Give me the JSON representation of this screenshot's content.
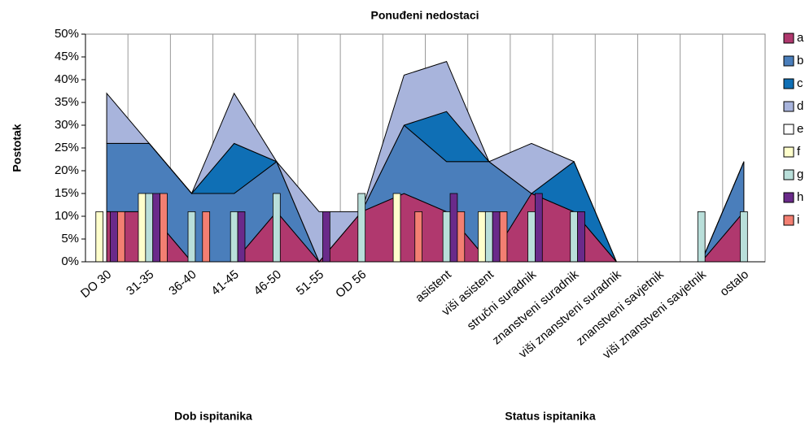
{
  "chart_data": {
    "type": "combo",
    "title": "Ponuđeni nedostaci",
    "y_label": "Postotak",
    "group_labels": [
      "Dob ispitanika",
      "Status ispitanika"
    ],
    "categories": [
      "DO 30",
      "31-35",
      "36-40",
      "41-45",
      "46-50",
      "51-55",
      "OD 56",
      null,
      "asistent",
      "viši asistent",
      "stručni suradnik",
      "znanstveni suradnik",
      "viši znanstveni suradnik",
      "znanstveni savjetnik",
      "viši znanstveni savjetnik",
      "ostalo"
    ],
    "series": [
      {
        "name": "a",
        "kind": "area",
        "color": "#B0386E",
        "values": [
          11,
          11,
          0,
          0,
          11,
          0,
          11,
          15,
          11,
          0,
          15,
          11,
          0,
          0,
          0,
          11
        ]
      },
      {
        "name": "b",
        "kind": "area",
        "color": "#4A7EBB",
        "values": [
          15,
          15,
          15,
          15,
          11,
          0,
          0,
          15,
          11,
          22,
          0,
          0,
          0,
          0,
          0,
          11
        ]
      },
      {
        "name": "c",
        "kind": "area",
        "color": "#0F6FB5",
        "values": [
          0,
          0,
          0,
          11,
          0,
          0,
          0,
          0,
          11,
          0,
          0,
          11,
          0,
          0,
          0,
          0
        ]
      },
      {
        "name": "d",
        "kind": "area",
        "color": "#A8B4DC",
        "values": [
          11,
          0,
          0,
          11,
          0,
          11,
          0,
          11,
          11,
          0,
          11,
          0,
          0,
          0,
          0,
          0
        ]
      },
      {
        "name": "e",
        "kind": "bar",
        "color": "#FFFFFF",
        "values": [
          0,
          0,
          0,
          0,
          0,
          0,
          0,
          0,
          0,
          0,
          0,
          0,
          0,
          0,
          0,
          0
        ]
      },
      {
        "name": "f",
        "kind": "bar",
        "color": "#FFFFCC",
        "values": [
          11,
          15,
          0,
          0,
          0,
          0,
          0,
          15,
          0,
          11,
          0,
          0,
          0,
          0,
          0,
          0
        ]
      },
      {
        "name": "g",
        "kind": "bar",
        "color": "#B9DFDA",
        "values": [
          0,
          15,
          11,
          11,
          15,
          0,
          15,
          0,
          11,
          11,
          11,
          11,
          0,
          0,
          11,
          11
        ]
      },
      {
        "name": "h",
        "kind": "bar",
        "color": "#6A2A8A",
        "values": [
          11,
          15,
          0,
          11,
          0,
          11,
          0,
          0,
          15,
          11,
          15,
          11,
          0,
          0,
          0,
          0
        ]
      },
      {
        "name": "i",
        "kind": "bar",
        "color": "#F37F72",
        "values": [
          11,
          15,
          11,
          0,
          0,
          0,
          0,
          11,
          11,
          11,
          0,
          0,
          0,
          0,
          0,
          0
        ]
      }
    ],
    "ylim": [
      0,
      50
    ],
    "yticks": [
      {
        "value": 0,
        "label": "0%"
      },
      {
        "value": 5,
        "label": "5%"
      },
      {
        "value": 10,
        "label": "10%"
      },
      {
        "value": 15,
        "label": "15%"
      },
      {
        "value": 20,
        "label": "20%"
      },
      {
        "value": 25,
        "label": "25%"
      },
      {
        "value": 30,
        "label": "30%"
      },
      {
        "value": 35,
        "label": "35%"
      },
      {
        "value": 40,
        "label": "40%"
      },
      {
        "value": 45,
        "label": "45%"
      },
      {
        "value": 50,
        "label": "50%"
      }
    ],
    "legend": "right"
  }
}
